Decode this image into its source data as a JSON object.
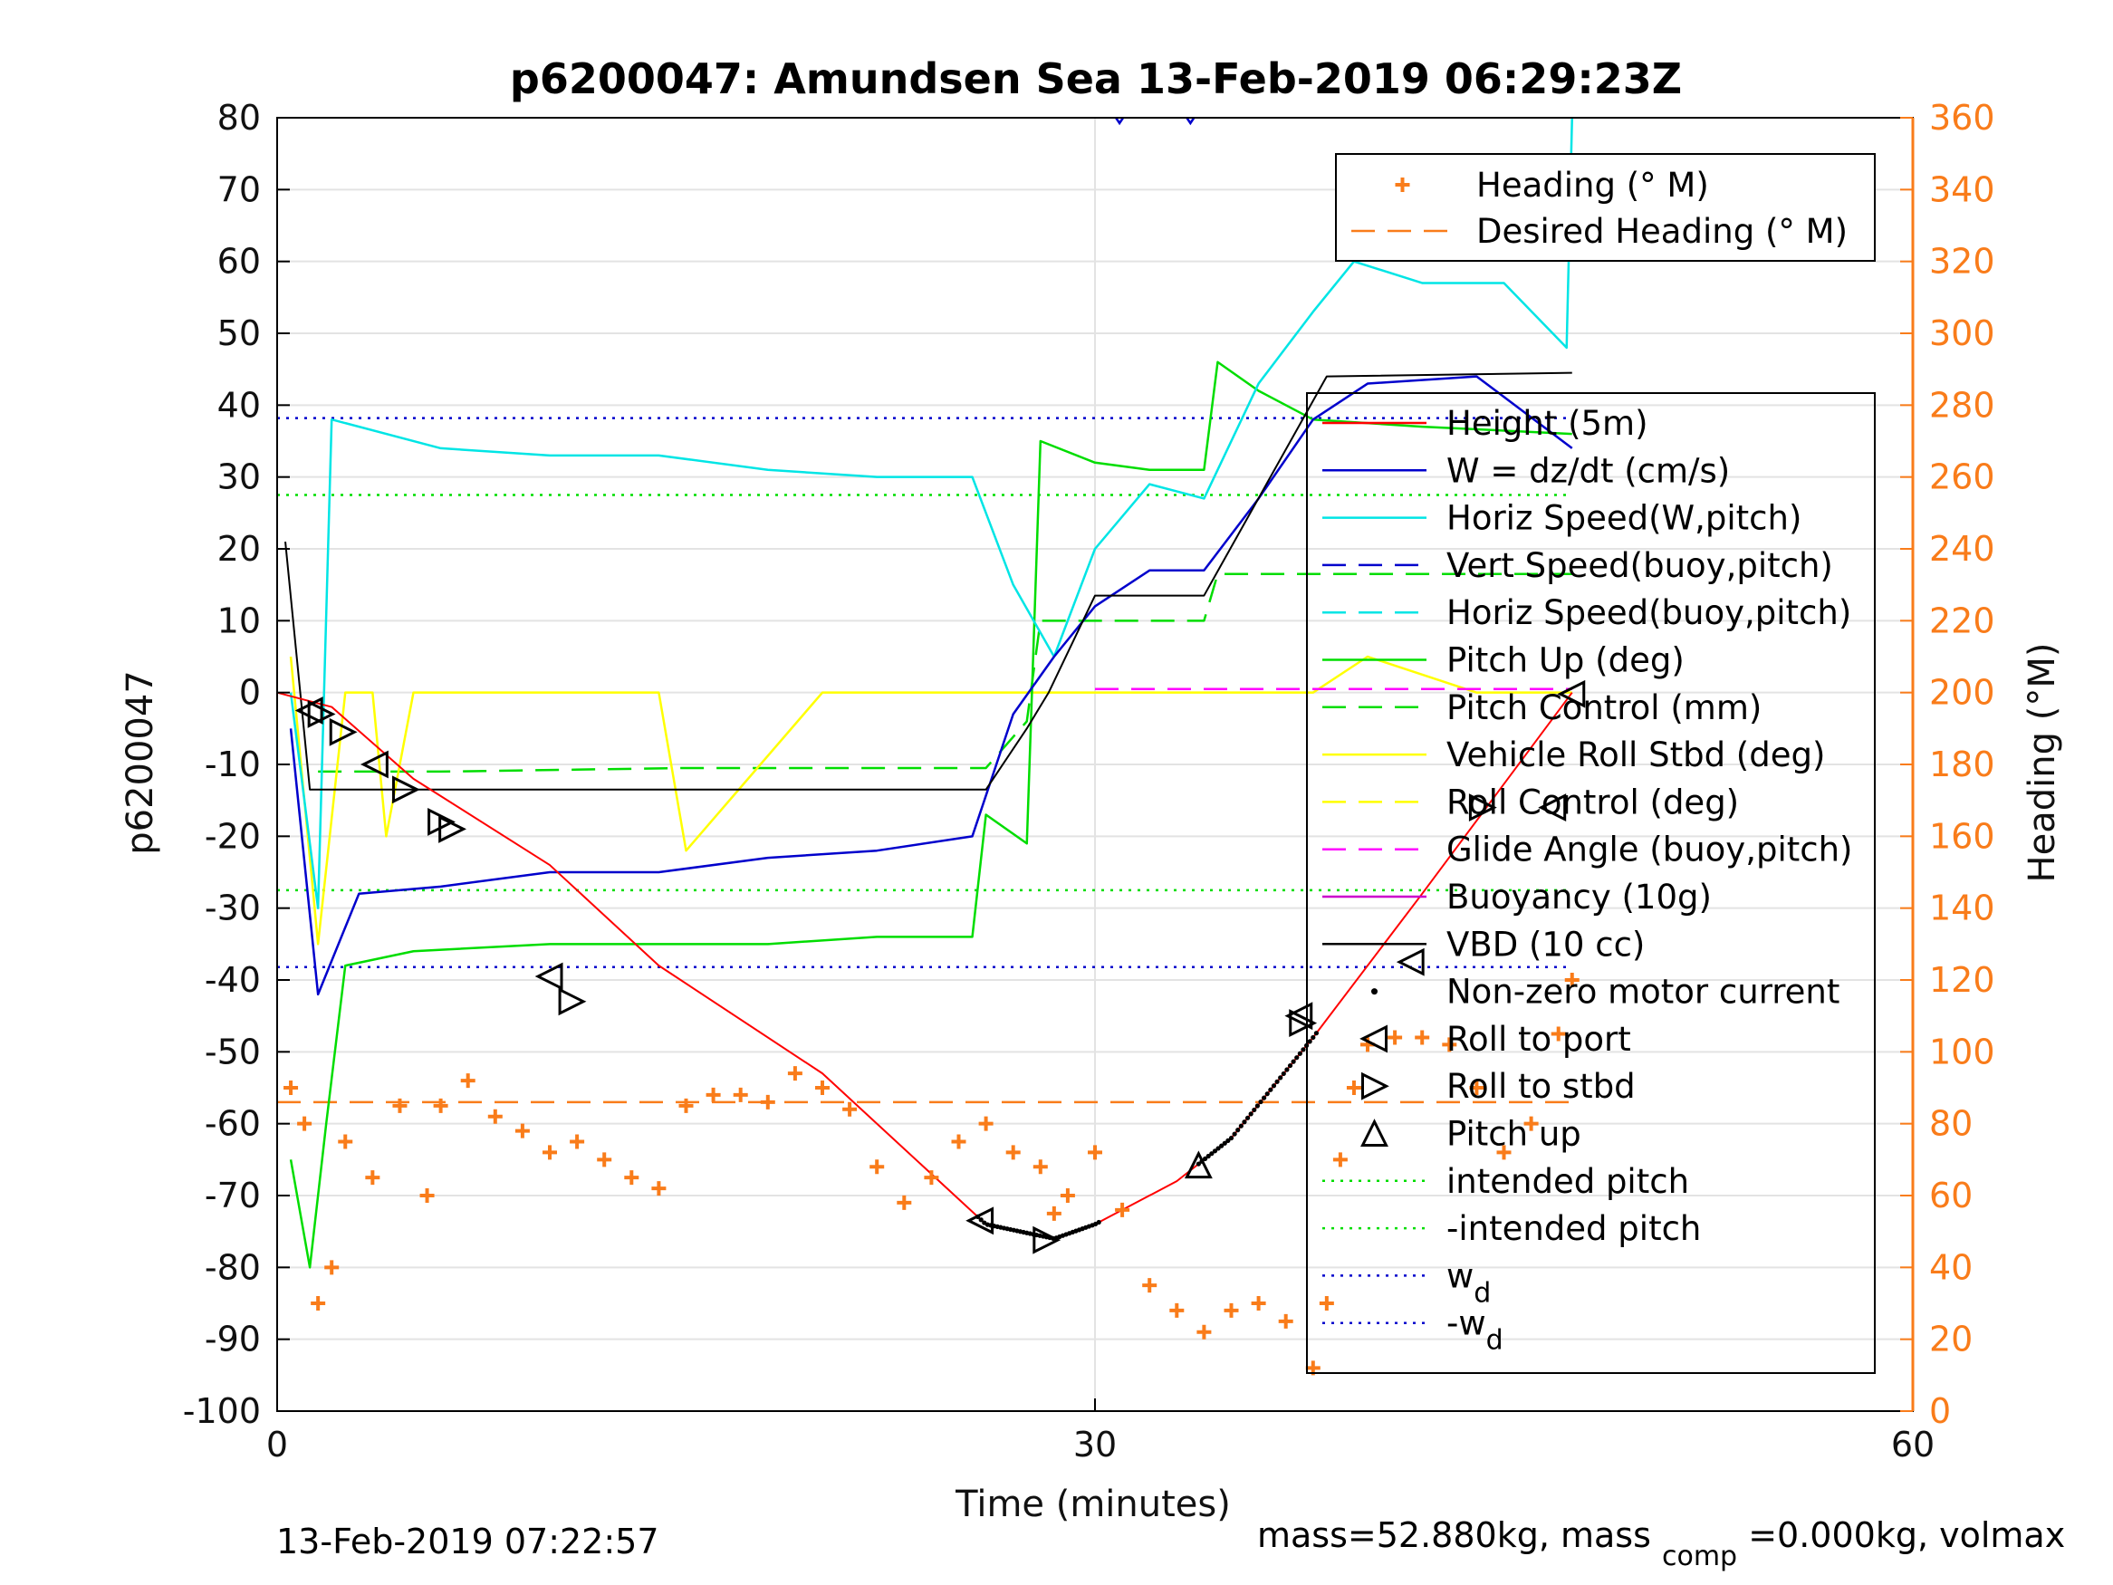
{
  "chart_data": {
    "type": "line",
    "title": "p6200047: Amundsen Sea 13-Feb-2019 06:29:23Z",
    "xlabel": "Time (minutes)",
    "ylabel": "p6200047",
    "ylabel_right": "Heading (°M)",
    "xlim": [
      0,
      60
    ],
    "ylim": [
      -100,
      80
    ],
    "ylim_right": [
      0,
      360
    ],
    "xticks": [
      "0",
      "30",
      "60"
    ],
    "yticks": [
      "80",
      "70",
      "60",
      "50",
      "40",
      "30",
      "20",
      "10",
      "0",
      "-10",
      "-20",
      "-30",
      "-40",
      "-50",
      "-60",
      "-70",
      "-80",
      "-90",
      "-100"
    ],
    "yticks_right": [
      "360",
      "340",
      "320",
      "300",
      "280",
      "260",
      "240",
      "220",
      "200",
      "180",
      "160",
      "140",
      "120",
      "100",
      "80",
      "60",
      "40",
      "20",
      "0"
    ],
    "grid": true,
    "colors": {
      "heading": "#f97c1a",
      "depth": "#ff0000",
      "w": "#0000cc",
      "horiz": "#00e5e5",
      "pitch": "#00dd00",
      "roll": "#ffff00",
      "glide": "#ff00ff",
      "vbd": "#000000"
    },
    "legend_top": {
      "placement": "top-right",
      "entries": [
        {
          "label": "Heading (° M)",
          "style": "plus",
          "color": "#f97c1a"
        },
        {
          "label": "Desired Heading (° M)",
          "style": "dashed",
          "color": "#f97c1a"
        }
      ]
    },
    "legend_main": {
      "placement": "right",
      "entries": [
        {
          "label": "Height (5m)",
          "style": "solid",
          "color": "#ff0000"
        },
        {
          "label": "W = dz/dt (cm/s)",
          "style": "solid",
          "color": "#0000cc"
        },
        {
          "label": "Horiz Speed(W,pitch)",
          "style": "solid",
          "color": "#00e5e5"
        },
        {
          "label": "Vert Speed(buoy,pitch)",
          "style": "dashed",
          "color": "#0000cc"
        },
        {
          "label": "Horiz Speed(buoy,pitch)",
          "style": "dashed",
          "color": "#00e5e5"
        },
        {
          "label": "Pitch Up (deg)",
          "style": "solid",
          "color": "#00dd00"
        },
        {
          "label": "Pitch Control (mm)",
          "style": "dashed",
          "color": "#00dd00"
        },
        {
          "label": "Vehicle Roll Stbd (deg)",
          "style": "solid",
          "color": "#ffff00"
        },
        {
          "label": "Roll Control (deg)",
          "style": "dashed",
          "color": "#ffff00"
        },
        {
          "label": "Glide Angle (buoy,pitch)",
          "style": "dashed",
          "color": "#ff00ff"
        },
        {
          "label": "Buoyancy (10g)",
          "style": "solid",
          "color": "#cc00cc"
        },
        {
          "label": "VBD (10 cc)",
          "style": "solid",
          "color": "#000000"
        },
        {
          "label": "Non-zero motor current",
          "style": "dot",
          "color": "#000000"
        },
        {
          "label": "Roll to port",
          "style": "tri-left",
          "color": "#000000"
        },
        {
          "label": "Roll to stbd",
          "style": "tri-right",
          "color": "#000000"
        },
        {
          "label": "Pitch up",
          "style": "tri-up",
          "color": "#000000"
        },
        {
          "label": "intended pitch",
          "style": "dotted",
          "color": "#00dd00"
        },
        {
          "label": "-intended pitch",
          "style": "dotted",
          "color": "#00dd00"
        },
        {
          "label": "w",
          "sub": "d",
          "style": "dotted",
          "color": "#0000cc"
        },
        {
          "label": "-w",
          "sub": "d",
          "style": "dotted",
          "color": "#0000cc"
        }
      ]
    },
    "reference_lines": {
      "intended_pitch": 27.5,
      "neg_intended_pitch": -27.5,
      "w_d": 38.2,
      "neg_w_d": -38.2,
      "desired_heading": 86
    },
    "series": {
      "depth": {
        "x": [
          0,
          2,
          5,
          10,
          14,
          20,
          26,
          28.5,
          30,
          33,
          35,
          38,
          42,
          47.5
        ],
        "y": [
          0,
          -2,
          -12,
          -24,
          -38,
          -53,
          -74,
          -76,
          -74,
          -68,
          -62,
          -48,
          -28,
          0
        ]
      },
      "vbd": {
        "x": [
          0.3,
          1.2,
          5,
          15,
          26,
          27.5,
          28.3,
          30,
          34,
          38.5,
          47.5
        ],
        "y": [
          21,
          -13.5,
          -13.5,
          -13.5,
          -13.5,
          -5,
          0,
          13.5,
          13.5,
          44,
          44.5
        ]
      },
      "w": {
        "x": [
          0.5,
          1.5,
          3,
          6,
          10,
          14,
          18,
          22,
          25.5,
          27,
          28.5,
          30,
          32,
          34,
          36,
          38,
          40,
          44,
          47.5
        ],
        "y": [
          -5,
          -42,
          -28,
          -27,
          -25,
          -25,
          -23,
          -22,
          -20,
          -3,
          5,
          12,
          17,
          17,
          27,
          38,
          43,
          44,
          34
        ]
      },
      "horiz": {
        "x": [
          0.5,
          1.5,
          2,
          6,
          10,
          14,
          18,
          22,
          25.5,
          27,
          28.5,
          30,
          32,
          34,
          36,
          38,
          39.5,
          42,
          45,
          47.3,
          47.5
        ],
        "y": [
          0,
          -30,
          38,
          34,
          33,
          33,
          31,
          30,
          30,
          15,
          5,
          20,
          29,
          27,
          43,
          53,
          60,
          57,
          57,
          48,
          80
        ]
      },
      "pitch": {
        "x": [
          0.5,
          1.2,
          1.8,
          2.5,
          5,
          10,
          14,
          18,
          22,
          25.5,
          26,
          27.5,
          28,
          30,
          32,
          34,
          34.5,
          36,
          38,
          42,
          47.5
        ],
        "y": [
          -65,
          -80,
          -60,
          -38,
          -36,
          -35,
          -35,
          -35,
          -34,
          -34,
          -17,
          -21,
          35,
          32,
          31,
          31,
          46,
          42,
          38,
          37,
          36
        ]
      },
      "pitch_control": {
        "x": [
          1.5,
          6,
          15,
          26,
          27.5,
          28,
          34,
          34.5,
          42,
          47.5
        ],
        "y": [
          -11,
          -11,
          -10.5,
          -10.5,
          -4,
          10,
          10,
          16.5,
          16.5,
          16.5
        ]
      },
      "roll": {
        "x": [
          0.5,
          1.5,
          2.5,
          3.5,
          4,
          5,
          6,
          14,
          15,
          20,
          26,
          30,
          38,
          40,
          44,
          47.5
        ],
        "y": [
          5,
          -35,
          0,
          0,
          -20,
          0,
          0,
          0,
          -22,
          0,
          0,
          0,
          0,
          5,
          0,
          0
        ]
      },
      "glide": {
        "x": [
          30,
          47.5
        ],
        "y": [
          0.5,
          0.5
        ]
      },
      "heading": {
        "x": [
          0.5,
          1,
          1.5,
          2,
          2.5,
          3.5,
          4.5,
          5.5,
          6,
          7,
          8,
          9,
          10,
          11,
          12,
          13,
          14,
          15,
          16,
          17,
          18,
          19,
          20,
          21,
          22,
          23,
          24,
          25,
          26,
          27,
          28,
          28.5,
          29,
          30,
          31,
          32,
          33,
          34,
          35,
          36,
          37,
          38,
          38.5,
          39,
          39.5,
          40,
          41,
          42,
          43,
          44,
          45,
          46,
          47,
          47.5
        ],
        "y": [
          90,
          80,
          30,
          40,
          75,
          65,
          85,
          60,
          85,
          92,
          82,
          78,
          72,
          75,
          70,
          65,
          62,
          85,
          88,
          88,
          86,
          94,
          90,
          84,
          68,
          58,
          65,
          75,
          80,
          72,
          68,
          55,
          60,
          72,
          56,
          35,
          28,
          22,
          28,
          30,
          25,
          12,
          30,
          70,
          90,
          102,
          104,
          104,
          102,
          90,
          72,
          80,
          105,
          120
        ]
      }
    },
    "markers": {
      "roll_to_port": [
        [
          1.2,
          -2.5
        ],
        [
          3.6,
          -10
        ],
        [
          10,
          -39.5
        ],
        [
          25.8,
          -73.5
        ],
        [
          37.5,
          -45
        ],
        [
          41.6,
          -37.5
        ],
        [
          46.8,
          -16
        ],
        [
          47.5,
          -0.2
        ]
      ],
      "roll_to_stbd": [
        [
          1.6,
          -3
        ],
        [
          2.4,
          -5.5
        ],
        [
          4.7,
          -13.5
        ],
        [
          6.0,
          -18
        ],
        [
          6.4,
          -19
        ],
        [
          10.8,
          -43
        ],
        [
          28.2,
          -76.2
        ],
        [
          37.6,
          -46
        ],
        [
          44.2,
          -16
        ]
      ],
      "pitch_up": [
        [
          33.8,
          -65.8
        ]
      ]
    },
    "top_stray_marks": [
      [
        30.9,
        80
      ],
      [
        33.5,
        80
      ]
    ]
  },
  "footer": {
    "timestamp": "13-Feb-2019 07:22:57",
    "mass_text": "mass=52.880kg, mass",
    "mass_sub": "comp",
    "mass_rest": "=0.000kg, volmax"
  }
}
